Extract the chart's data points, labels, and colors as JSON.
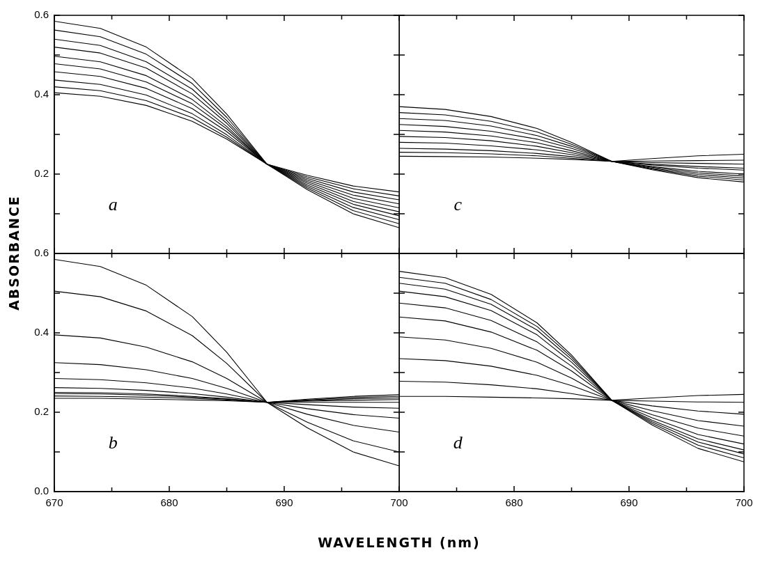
{
  "chart_data": [
    {
      "type": "line",
      "annotations": [
        "a"
      ],
      "ylabel": "ABSORBANCE",
      "x": [
        670,
        674,
        678,
        682,
        685,
        688.5,
        692,
        696,
        700
      ],
      "xlim": [
        670,
        700
      ],
      "xticks": [
        670,
        {
          "value": 675,
          "label": null
        },
        680,
        {
          "value": 685,
          "label": null
        },
        690,
        {
          "value": 695,
          "label": null
        },
        700
      ],
      "ylim": [
        0,
        0.6
      ],
      "yticks": [
        {
          "value": 0.1,
          "label": null
        },
        0.2,
        {
          "value": 0.3,
          "label": null
        },
        0.4,
        {
          "value": 0.5,
          "label": null
        },
        0.6
      ],
      "tick_labels": "y",
      "marker": "none",
      "legend": false,
      "series": [
        {
          "color": "#000000",
          "values": [
            0.585,
            0.567,
            0.52,
            0.441,
            0.351,
            0.225,
            0.161,
            0.1,
            0.065
          ]
        },
        {
          "color": "#000000",
          "values": [
            0.563,
            0.546,
            0.502,
            0.428,
            0.343,
            0.225,
            0.165,
            0.108,
            0.075
          ]
        },
        {
          "color": "#000000",
          "values": [
            0.54,
            0.524,
            0.483,
            0.414,
            0.335,
            0.225,
            0.169,
            0.116,
            0.085
          ]
        },
        {
          "color": "#000000",
          "values": [
            0.52,
            0.505,
            0.467,
            0.402,
            0.328,
            0.225,
            0.173,
            0.124,
            0.095
          ]
        },
        {
          "color": "#000000",
          "values": [
            0.497,
            0.483,
            0.448,
            0.388,
            0.32,
            0.225,
            0.177,
            0.131,
            0.105
          ]
        },
        {
          "color": "#000000",
          "values": [
            0.478,
            0.465,
            0.432,
            0.377,
            0.314,
            0.225,
            0.181,
            0.139,
            0.115
          ]
        },
        {
          "color": "#000000",
          "values": [
            0.458,
            0.446,
            0.416,
            0.365,
            0.307,
            0.225,
            0.185,
            0.147,
            0.125
          ]
        },
        {
          "color": "#000000",
          "values": [
            0.437,
            0.426,
            0.399,
            0.352,
            0.299,
            0.225,
            0.189,
            0.155,
            0.135
          ]
        },
        {
          "color": "#000000",
          "values": [
            0.42,
            0.41,
            0.385,
            0.342,
            0.293,
            0.225,
            0.193,
            0.163,
            0.145
          ]
        },
        {
          "color": "#000000",
          "values": [
            0.405,
            0.396,
            0.373,
            0.333,
            0.288,
            0.225,
            0.197,
            0.17,
            0.155
          ]
        }
      ]
    },
    {
      "type": "line",
      "annotations": [
        "c"
      ],
      "x": [
        670,
        674,
        678,
        682,
        685,
        688.5,
        692,
        696,
        700
      ],
      "xlim": [
        670,
        700
      ],
      "xticks": [
        670,
        {
          "value": 675,
          "label": null
        },
        680,
        {
          "value": 685,
          "label": null
        },
        690,
        {
          "value": 695,
          "label": null
        },
        700
      ],
      "ylim": [
        0,
        0.6
      ],
      "yticks": [
        {
          "value": 0.1,
          "label": null
        },
        0.2,
        {
          "value": 0.3,
          "label": null
        },
        0.4,
        {
          "value": 0.5,
          "label": null
        },
        0.6
      ],
      "tick_labels": false,
      "marker": "none",
      "legend": false,
      "series": [
        {
          "color": "#000000",
          "values": [
            0.37,
            0.363,
            0.345,
            0.315,
            0.28,
            0.232,
            0.211,
            0.191,
            0.18
          ]
        },
        {
          "color": "#000000",
          "values": [
            0.355,
            0.349,
            0.333,
            0.306,
            0.275,
            0.232,
            0.213,
            0.195,
            0.185
          ]
        },
        {
          "color": "#000000",
          "values": [
            0.34,
            0.335,
            0.321,
            0.297,
            0.27,
            0.232,
            0.215,
            0.199,
            0.19
          ]
        },
        {
          "color": "#000000",
          "values": [
            0.325,
            0.32,
            0.308,
            0.288,
            0.265,
            0.232,
            0.217,
            0.203,
            0.195
          ]
        },
        {
          "color": "#000000",
          "values": [
            0.31,
            0.306,
            0.296,
            0.279,
            0.259,
            0.232,
            0.219,
            0.207,
            0.2
          ]
        },
        {
          "color": "#000000",
          "values": [
            0.295,
            0.292,
            0.284,
            0.27,
            0.254,
            0.232,
            0.223,
            0.215,
            0.21
          ]
        },
        {
          "color": "#000000",
          "values": [
            0.28,
            0.278,
            0.271,
            0.261,
            0.249,
            0.232,
            0.225,
            0.219,
            0.215
          ]
        },
        {
          "color": "#000000",
          "values": [
            0.265,
            0.263,
            0.259,
            0.252,
            0.244,
            0.232,
            0.229,
            0.227,
            0.225
          ]
        },
        {
          "color": "#000000",
          "values": [
            0.255,
            0.254,
            0.251,
            0.246,
            0.24,
            0.232,
            0.233,
            0.234,
            0.235
          ]
        },
        {
          "color": "#000000",
          "values": [
            0.245,
            0.244,
            0.243,
            0.24,
            0.237,
            0.232,
            0.239,
            0.246,
            0.25
          ]
        }
      ]
    },
    {
      "type": "line",
      "annotations": [
        "b"
      ],
      "xlabel": "WAVELENGTH (nm)",
      "x": [
        670,
        674,
        678,
        682,
        685,
        688.5,
        692,
        696,
        700
      ],
      "xlim": [
        670,
        700
      ],
      "xticks": [
        670,
        {
          "value": 675,
          "label": null
        },
        680,
        {
          "value": 685,
          "label": null
        },
        690,
        {
          "value": 695,
          "label": null
        },
        700
      ],
      "ylim": [
        0,
        0.6
      ],
      "yticks": [
        {
          "value": 0,
          "label": "0.0"
        },
        {
          "value": 0.1,
          "label": null
        },
        0.2,
        {
          "value": 0.3,
          "label": null
        },
        0.4,
        {
          "value": 0.5,
          "label": null
        },
        0.6
      ],
      "marker": "none",
      "legend": false,
      "series": [
        {
          "color": "#000000",
          "values": [
            0.585,
            0.567,
            0.52,
            0.441,
            0.351,
            0.225,
            0.161,
            0.1,
            0.065
          ]
        },
        {
          "color": "#000000",
          "values": [
            0.505,
            0.491,
            0.455,
            0.393,
            0.323,
            0.225,
            0.175,
            0.128,
            0.1
          ]
        },
        {
          "color": "#000000",
          "values": [
            0.395,
            0.387,
            0.364,
            0.327,
            0.285,
            0.225,
            0.195,
            0.167,
            0.15
          ]
        },
        {
          "color": "#000000",
          "values": [
            0.325,
            0.32,
            0.307,
            0.285,
            0.26,
            0.225,
            0.209,
            0.194,
            0.185
          ]
        },
        {
          "color": "#000000",
          "values": [
            0.285,
            0.282,
            0.274,
            0.261,
            0.246,
            0.225,
            0.219,
            0.213,
            0.21
          ]
        },
        {
          "color": "#000000",
          "values": [
            0.262,
            0.26,
            0.255,
            0.247,
            0.238,
            0.225,
            0.225,
            0.225,
            0.225
          ]
        },
        {
          "color": "#000000",
          "values": [
            0.25,
            0.249,
            0.246,
            0.24,
            0.234,
            0.225,
            0.228,
            0.23,
            0.232
          ]
        },
        {
          "color": "#000000",
          "values": [
            0.247,
            0.246,
            0.243,
            0.238,
            0.233,
            0.225,
            0.229,
            0.234,
            0.236
          ]
        },
        {
          "color": "#000000",
          "values": [
            0.241,
            0.24,
            0.238,
            0.235,
            0.231,
            0.225,
            0.231,
            0.237,
            0.24
          ]
        },
        {
          "color": "#000000",
          "values": [
            0.235,
            0.235,
            0.233,
            0.231,
            0.229,
            0.225,
            0.233,
            0.24,
            0.244
          ]
        }
      ]
    },
    {
      "type": "line",
      "annotations": [
        "d"
      ],
      "x": [
        670,
        674,
        678,
        682,
        685,
        688.5,
        692,
        696,
        700
      ],
      "xlim": [
        670,
        700
      ],
      "xticks": [
        {
          "value": 670,
          "label": null
        },
        {
          "value": 675,
          "label": null
        },
        680,
        {
          "value": 685,
          "label": null
        },
        690,
        {
          "value": 695,
          "label": null
        },
        700
      ],
      "ylim": [
        0,
        0.6
      ],
      "yticks": [
        {
          "value": 0.1,
          "label": null
        },
        {
          "value": 0.2,
          "label": null
        },
        {
          "value": 0.3,
          "label": null
        },
        {
          "value": 0.4,
          "label": null
        },
        {
          "value": 0.5,
          "label": null
        }
      ],
      "tick_labels": "x",
      "marker": "none",
      "legend": false,
      "series": [
        {
          "color": "#000000",
          "values": [
            0.555,
            0.539,
            0.497,
            0.425,
            0.344,
            0.23,
            0.168,
            0.109,
            0.075
          ]
        },
        {
          "color": "#000000",
          "values": [
            0.54,
            0.525,
            0.484,
            0.416,
            0.339,
            0.23,
            0.172,
            0.117,
            0.085
          ]
        },
        {
          "color": "#000000",
          "values": [
            0.525,
            0.51,
            0.472,
            0.407,
            0.333,
            0.23,
            0.176,
            0.125,
            0.095
          ]
        },
        {
          "color": "#000000",
          "values": [
            0.505,
            0.491,
            0.456,
            0.395,
            0.326,
            0.23,
            0.18,
            0.133,
            0.105
          ]
        },
        {
          "color": "#000000",
          "values": [
            0.475,
            0.463,
            0.431,
            0.377,
            0.316,
            0.23,
            0.186,
            0.144,
            0.12
          ]
        },
        {
          "color": "#000000",
          "values": [
            0.44,
            0.43,
            0.402,
            0.356,
            0.304,
            0.23,
            0.194,
            0.16,
            0.14
          ]
        },
        {
          "color": "#000000",
          "values": [
            0.39,
            0.382,
            0.361,
            0.326,
            0.286,
            0.23,
            0.204,
            0.179,
            0.165
          ]
        },
        {
          "color": "#000000",
          "values": [
            0.335,
            0.33,
            0.316,
            0.293,
            0.267,
            0.23,
            0.216,
            0.203,
            0.195
          ]
        },
        {
          "color": "#000000",
          "values": [
            0.278,
            0.276,
            0.269,
            0.259,
            0.247,
            0.23,
            0.228,
            0.226,
            0.225
          ]
        },
        {
          "color": "#000000",
          "values": [
            0.24,
            0.24,
            0.238,
            0.236,
            0.234,
            0.23,
            0.236,
            0.242,
            0.245
          ]
        }
      ]
    }
  ]
}
